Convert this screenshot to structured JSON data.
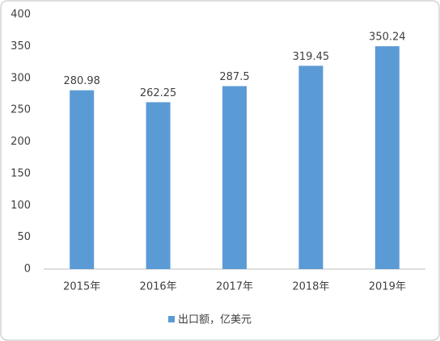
{
  "chart_data": {
    "type": "bar",
    "categories": [
      "2015年",
      "2016年",
      "2017年",
      "2018年",
      "2019年"
    ],
    "series": [
      {
        "name": "出口额，亿美元",
        "color": "#5b9bd5",
        "values": [
          280.98,
          262.25,
          287.5,
          319.45,
          350.24
        ]
      }
    ],
    "ylim": [
      0,
      400
    ],
    "yticks": [
      0,
      50,
      100,
      150,
      200,
      250,
      300,
      350,
      400
    ],
    "grid": false,
    "legend": "bottom"
  }
}
